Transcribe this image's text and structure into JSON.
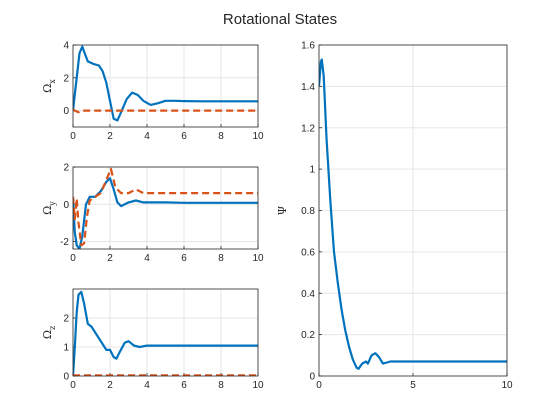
{
  "title": "Rotational States",
  "colors": {
    "series1": "#0072BD",
    "series2": "#D95319",
    "grid": "#e6e6e6",
    "axis": "#262626"
  },
  "chart_data": [
    {
      "type": "line",
      "ylabel_symbol": "Ω",
      "ylabel_sub": "x",
      "xlim": [
        0,
        10
      ],
      "ylim": [
        -1,
        4
      ],
      "xticks": [
        "0",
        "2",
        "4",
        "6",
        "8",
        "10"
      ],
      "yticks": [
        "0",
        "2",
        "4"
      ],
      "grid": true,
      "series": [
        {
          "style": "solid",
          "points": [
            [
              0,
              0
            ],
            [
              0.2,
              2
            ],
            [
              0.35,
              3.5
            ],
            [
              0.5,
              3.9
            ],
            [
              0.6,
              3.6
            ],
            [
              0.8,
              3.0
            ],
            [
              1.1,
              2.85
            ],
            [
              1.4,
              2.75
            ],
            [
              1.6,
              2.4
            ],
            [
              1.8,
              1.7
            ],
            [
              2.0,
              0.6
            ],
            [
              2.2,
              -0.5
            ],
            [
              2.4,
              -0.6
            ],
            [
              2.6,
              -0.1
            ],
            [
              2.9,
              0.7
            ],
            [
              3.2,
              1.1
            ],
            [
              3.5,
              0.95
            ],
            [
              3.8,
              0.6
            ],
            [
              4.2,
              0.35
            ],
            [
              4.6,
              0.45
            ],
            [
              5.0,
              0.6
            ],
            [
              5.5,
              0.6
            ],
            [
              6,
              0.58
            ],
            [
              7,
              0.57
            ],
            [
              8,
              0.57
            ],
            [
              9,
              0.57
            ],
            [
              10,
              0.57
            ]
          ]
        },
        {
          "style": "dashed",
          "points": [
            [
              0,
              0.05
            ],
            [
              0.3,
              -0.1
            ],
            [
              0.5,
              0.0
            ],
            [
              1,
              0.0
            ],
            [
              10,
              0.0
            ]
          ]
        }
      ]
    },
    {
      "type": "line",
      "ylabel_symbol": "Ω",
      "ylabel_sub": "y",
      "xlim": [
        0,
        10
      ],
      "ylim": [
        -2.4,
        2
      ],
      "xticks": [
        "0",
        "2",
        "4",
        "6",
        "8",
        "10"
      ],
      "yticks": [
        "-2",
        "0",
        "2"
      ],
      "grid": true,
      "series": [
        {
          "style": "solid",
          "points": [
            [
              0,
              0.3
            ],
            [
              0.1,
              -1.5
            ],
            [
              0.2,
              -2.2
            ],
            [
              0.35,
              -2.4
            ],
            [
              0.5,
              -1.7
            ],
            [
              0.7,
              0
            ],
            [
              0.9,
              0.4
            ],
            [
              1.2,
              0.4
            ],
            [
              1.5,
              0.7
            ],
            [
              1.8,
              1.2
            ],
            [
              2.0,
              1.4
            ],
            [
              2.2,
              0.8
            ],
            [
              2.4,
              0.1
            ],
            [
              2.6,
              -0.1
            ],
            [
              3.0,
              0.1
            ],
            [
              3.4,
              0.2
            ],
            [
              3.8,
              0.1
            ],
            [
              4.3,
              0.1
            ],
            [
              5,
              0.1
            ],
            [
              6,
              0.08
            ],
            [
              7,
              0.08
            ],
            [
              8,
              0.08
            ],
            [
              9,
              0.08
            ],
            [
              10,
              0.08
            ]
          ]
        },
        {
          "style": "dashed",
          "points": [
            [
              0,
              0.4
            ],
            [
              0.1,
              -0.8
            ],
            [
              0.2,
              0.3
            ],
            [
              0.3,
              -1.0
            ],
            [
              0.45,
              -2.2
            ],
            [
              0.6,
              -2.1
            ],
            [
              0.75,
              -0.7
            ],
            [
              0.9,
              0.2
            ],
            [
              1.2,
              0.4
            ],
            [
              1.5,
              0.6
            ],
            [
              1.8,
              1.3
            ],
            [
              2.05,
              1.9
            ],
            [
              2.3,
              0.9
            ],
            [
              2.6,
              0.6
            ],
            [
              3.0,
              0.6
            ],
            [
              3.4,
              0.8
            ],
            [
              3.8,
              0.6
            ],
            [
              4.5,
              0.6
            ],
            [
              5,
              0.6
            ],
            [
              6,
              0.6
            ],
            [
              7,
              0.6
            ],
            [
              8,
              0.6
            ],
            [
              9,
              0.6
            ],
            [
              10,
              0.6
            ]
          ]
        }
      ]
    },
    {
      "type": "line",
      "ylabel_symbol": "Ω",
      "ylabel_sub": "z",
      "xlim": [
        0,
        10
      ],
      "ylim": [
        0,
        3
      ],
      "xticks": [
        "0",
        "2",
        "4",
        "6",
        "8",
        "10"
      ],
      "yticks": [
        "0",
        "1",
        "2"
      ],
      "grid": true,
      "series": [
        {
          "style": "solid",
          "points": [
            [
              0,
              0
            ],
            [
              0.1,
              1.0
            ],
            [
              0.2,
              2.2
            ],
            [
              0.3,
              2.8
            ],
            [
              0.45,
              2.9
            ],
            [
              0.6,
              2.5
            ],
            [
              0.8,
              1.8
            ],
            [
              1.0,
              1.7
            ],
            [
              1.2,
              1.5
            ],
            [
              1.5,
              1.2
            ],
            [
              1.8,
              0.9
            ],
            [
              2.0,
              0.9
            ],
            [
              2.2,
              0.65
            ],
            [
              2.35,
              0.6
            ],
            [
              2.5,
              0.8
            ],
            [
              2.8,
              1.15
            ],
            [
              3.0,
              1.2
            ],
            [
              3.3,
              1.05
            ],
            [
              3.6,
              1.0
            ],
            [
              4.0,
              1.05
            ],
            [
              4.5,
              1.05
            ],
            [
              5,
              1.05
            ],
            [
              6,
              1.05
            ],
            [
              7,
              1.05
            ],
            [
              8,
              1.05
            ],
            [
              9,
              1.05
            ],
            [
              10,
              1.05
            ]
          ]
        },
        {
          "style": "dashed",
          "points": [
            [
              0,
              0.02
            ],
            [
              10,
              0.02
            ]
          ]
        }
      ]
    },
    {
      "type": "line",
      "ylabel_symbol": "Ψ",
      "ylabel_sub": "",
      "xlim": [
        0,
        10
      ],
      "ylim": [
        0,
        1.6
      ],
      "xticks": [
        "0",
        "5",
        "10"
      ],
      "yticks": [
        "0",
        "0.2",
        "0.4",
        "0.6",
        "0.8",
        "1",
        "1.2",
        "1.4",
        "1.6"
      ],
      "grid": true,
      "series": [
        {
          "style": "solid",
          "points": [
            [
              0,
              1.4
            ],
            [
              0.1,
              1.52
            ],
            [
              0.15,
              1.53
            ],
            [
              0.25,
              1.45
            ],
            [
              0.4,
              1.15
            ],
            [
              0.6,
              0.85
            ],
            [
              0.8,
              0.6
            ],
            [
              1.0,
              0.45
            ],
            [
              1.2,
              0.32
            ],
            [
              1.4,
              0.22
            ],
            [
              1.6,
              0.14
            ],
            [
              1.8,
              0.08
            ],
            [
              2.0,
              0.04
            ],
            [
              2.1,
              0.035
            ],
            [
              2.3,
              0.06
            ],
            [
              2.5,
              0.07
            ],
            [
              2.6,
              0.06
            ],
            [
              2.8,
              0.1
            ],
            [
              3.0,
              0.11
            ],
            [
              3.2,
              0.09
            ],
            [
              3.4,
              0.06
            ],
            [
              3.8,
              0.07
            ],
            [
              4.3,
              0.07
            ],
            [
              5,
              0.07
            ],
            [
              6,
              0.07
            ],
            [
              7,
              0.07
            ],
            [
              8,
              0.07
            ],
            [
              9,
              0.07
            ],
            [
              10,
              0.07
            ]
          ]
        }
      ]
    }
  ]
}
